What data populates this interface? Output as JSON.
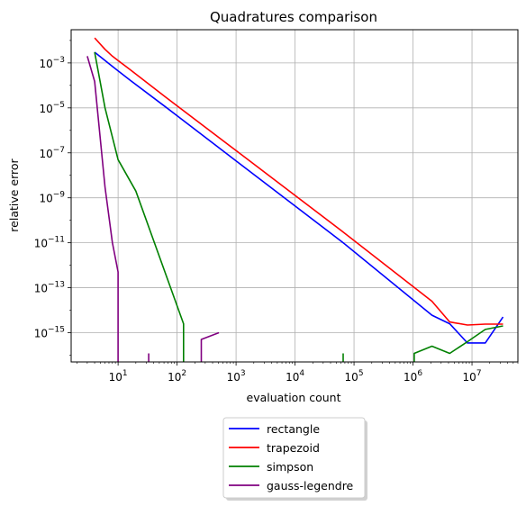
{
  "chart_data": {
    "type": "line",
    "title": "Quadratures comparison",
    "xlabel": "evaluation count",
    "ylabel": "relative error",
    "xscale": "log",
    "yscale": "log",
    "xlim": [
      1.6,
      60000000
    ],
    "ylim": [
      5e-17,
      0.03
    ],
    "xticks": [
      {
        "value": 10,
        "base": "10",
        "exp": "1"
      },
      {
        "value": 100,
        "base": "10",
        "exp": "2"
      },
      {
        "value": 1000,
        "base": "10",
        "exp": "3"
      },
      {
        "value": 10000,
        "base": "10",
        "exp": "4"
      },
      {
        "value": 100000,
        "base": "10",
        "exp": "5"
      },
      {
        "value": 1000000,
        "base": "10",
        "exp": "6"
      },
      {
        "value": 10000000,
        "base": "10",
        "exp": "7"
      }
    ],
    "yticks": [
      {
        "value": 0.001,
        "base": "10",
        "exp": "−3"
      },
      {
        "value": 1e-05,
        "base": "10",
        "exp": "−5"
      },
      {
        "value": 1e-07,
        "base": "10",
        "exp": "−7"
      },
      {
        "value": 1e-09,
        "base": "10",
        "exp": "−9"
      },
      {
        "value": 1e-11,
        "base": "10",
        "exp": "−11"
      },
      {
        "value": 1e-13,
        "base": "10",
        "exp": "−13"
      },
      {
        "value": 1e-15,
        "base": "10",
        "exp": "−15"
      }
    ],
    "grid": true,
    "legend_position": "below",
    "series": [
      {
        "name": "rectangle",
        "color": "#0000ff",
        "points": [
          [
            4,
            0.003
          ],
          [
            8,
            0.0007
          ],
          [
            16,
            0.00017
          ],
          [
            64,
            1.1e-05
          ],
          [
            1024,
            4.2e-08
          ],
          [
            65536,
            1e-11
          ],
          [
            2097152,
            6e-15
          ],
          [
            4194304,
            2.5e-15
          ],
          [
            8388608,
            3.5e-16
          ],
          [
            16777216,
            3.5e-16
          ],
          [
            33554432,
            5e-15
          ]
        ]
      },
      {
        "name": "trapezoid",
        "color": "#ff0000",
        "points": [
          [
            4,
            0.013
          ],
          [
            6,
            0.004
          ],
          [
            8,
            0.002
          ],
          [
            16,
            0.0005
          ],
          [
            64,
            3e-05
          ],
          [
            1024,
            1.2e-07
          ],
          [
            65536,
            3e-11
          ],
          [
            2097152,
            2.5e-14
          ],
          [
            4194304,
            3e-15
          ],
          [
            8388608,
            2.2e-15
          ],
          [
            16777216,
            2.4e-15
          ],
          [
            33554432,
            2.4e-15
          ]
        ]
      },
      {
        "name": "simpson",
        "color": "#008000",
        "segments": [
          [
            [
              4,
              0.003
            ],
            [
              6,
              1e-05
            ],
            [
              10,
              5e-08
            ],
            [
              20,
              2e-09
            ],
            [
              129,
              2.5e-15
            ],
            [
              129,
              5e-17
            ]
          ],
          [
            [
              65537,
              1.2e-16
            ],
            [
              65537,
              5e-17
            ]
          ],
          [
            [
              1048577,
              5e-17
            ],
            [
              1048577,
              1.2e-16
            ],
            [
              2097153,
              2.5e-16
            ],
            [
              4194305,
              1.2e-16
            ],
            [
              8388609,
              4e-16
            ],
            [
              16777217,
              1.4e-15
            ],
            [
              33554433,
              2e-15
            ]
          ]
        ]
      },
      {
        "name": "gauss-legendre",
        "color": "#800080",
        "segments": [
          [
            [
              3,
              0.002
            ],
            [
              4,
              0.00015
            ],
            [
              6,
              3e-09
            ],
            [
              8,
              1e-11
            ],
            [
              10,
              5e-13
            ],
            [
              10,
              5e-17
            ]
          ],
          [
            [
              33,
              1.2e-16
            ],
            [
              33,
              5e-17
            ]
          ],
          [
            [
              257,
              5e-17
            ],
            [
              257,
              5e-16
            ],
            [
              513,
              1e-15
            ]
          ]
        ]
      }
    ]
  }
}
